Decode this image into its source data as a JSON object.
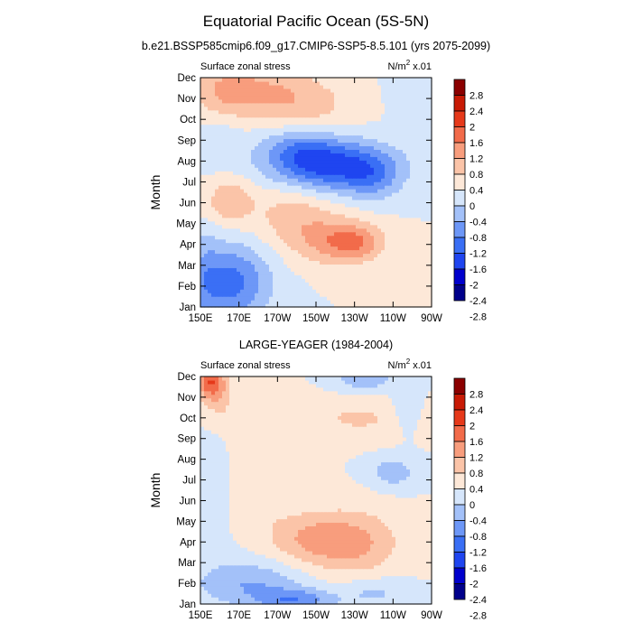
{
  "title": "Equatorial Pacific Ocean (5S-5N)",
  "units_base": "N/m",
  "units_exp": "2",
  "units_suffix": " x.01",
  "colors": [
    "#00008b",
    "#0000cd",
    "#1f45f0",
    "#3a6ff5",
    "#6d97f7",
    "#a3c1f9",
    "#d6e6fb",
    "#fde8d8",
    "#fbc4a8",
    "#f89d7d",
    "#f26b4a",
    "#e6391a",
    "#c81a05",
    "#8b0000"
  ],
  "chart_data": [
    {
      "type": "heatmap",
      "title": "b.e21.BSSP585cmip6.f09_g17.CMIP6-SSP5-8.5.101 (yrs 2075-2099)",
      "left_label": "Surface zonal stress",
      "ylabel": "Month",
      "x_ticks": [
        "150E",
        "170E",
        "170W",
        "150W",
        "130W",
        "110W",
        "90W"
      ],
      "y_ticks": [
        "Jan",
        "Feb",
        "Mar",
        "Apr",
        "May",
        "Jun",
        "Jul",
        "Aug",
        "Sep",
        "Oct",
        "Nov",
        "Dec"
      ],
      "levels": [
        "-2.8",
        "-2.4",
        "-2",
        "-1.6",
        "-1.2",
        "-0.8",
        "-0.4",
        "0",
        "0.4",
        "0.8",
        "1.2",
        "1.6",
        "2",
        "2.4",
        "2.8"
      ],
      "xlim": [
        150,
        270
      ],
      "ylim": [
        1,
        12
      ],
      "features": [
        {
          "lon": 166,
          "month": 2.2,
          "amp": -1.35,
          "sx": 14,
          "sy": 1.3
        },
        {
          "lon": 152,
          "month": 2.5,
          "amp": -0.4,
          "sx": 6,
          "sy": 1.8
        },
        {
          "lon": 220,
          "month": 4.2,
          "amp": 0.9,
          "sx": 14,
          "sy": 0.8
        },
        {
          "lon": 232,
          "month": 4.1,
          "amp": 0.7,
          "sx": 10,
          "sy": 0.6
        },
        {
          "lon": 198,
          "month": 5.4,
          "amp": 0.6,
          "sx": 14,
          "sy": 1.1
        },
        {
          "lon": 165,
          "month": 6.1,
          "amp": 0.75,
          "sx": 9,
          "sy": 0.8
        },
        {
          "lon": 218,
          "month": 7.8,
          "amp": -1.8,
          "sx": 22,
          "sy": 0.85
        },
        {
          "lon": 200,
          "month": 8.7,
          "amp": -0.7,
          "sx": 14,
          "sy": 0.7
        },
        {
          "lon": 240,
          "month": 7.2,
          "amp": -0.6,
          "sx": 10,
          "sy": 0.8
        },
        {
          "lon": 205,
          "month": 10.6,
          "amp": 0.5,
          "sx": 18,
          "sy": 0.9
        },
        {
          "lon": 180,
          "month": 11.5,
          "amp": 0.7,
          "sx": 20,
          "sy": 0.9
        },
        {
          "lon": 162,
          "month": 11.3,
          "amp": 0.5,
          "sx": 10,
          "sy": 1.0
        },
        {
          "lon": 160,
          "month": 9.0,
          "amp": -0.3,
          "sx": 8,
          "sy": 1.0
        },
        {
          "lon": 255,
          "month": 11.5,
          "amp": -0.25,
          "sx": 6,
          "sy": 1.0
        }
      ]
    },
    {
      "type": "heatmap",
      "title": "LARGE-YEAGER (1984-2004)",
      "left_label": "Surface zonal stress",
      "ylabel": "Month",
      "x_ticks": [
        "150E",
        "170E",
        "170W",
        "150W",
        "130W",
        "110W",
        "90W"
      ],
      "y_ticks": [
        "Jan",
        "Feb",
        "Mar",
        "Apr",
        "May",
        "Jun",
        "Jul",
        "Aug",
        "Sep",
        "Oct",
        "Nov",
        "Dec"
      ],
      "levels": [
        "-2.8",
        "-2.4",
        "-2",
        "-1.6",
        "-1.2",
        "-0.8",
        "-0.4",
        "0",
        "0.4",
        "0.8",
        "1.2",
        "1.6",
        "2",
        "2.4",
        "2.8"
      ],
      "xlim": [
        150,
        270
      ],
      "ylim": [
        1,
        12
      ],
      "features": [
        {
          "lon": 155,
          "month": 11.8,
          "amp": 1.4,
          "sx": 5,
          "sy": 0.6
        },
        {
          "lon": 160,
          "month": 11.0,
          "amp": 0.5,
          "sx": 6,
          "sy": 1.0
        },
        {
          "lon": 230,
          "month": 4.0,
          "amp": 0.9,
          "sx": 16,
          "sy": 1.1
        },
        {
          "lon": 205,
          "month": 4.2,
          "amp": 0.7,
          "sx": 14,
          "sy": 0.9
        },
        {
          "lon": 232,
          "month": 10.0,
          "amp": 0.45,
          "sx": 22,
          "sy": 0.7
        },
        {
          "lon": 183,
          "month": 7.5,
          "amp": 0.35,
          "sx": 9,
          "sy": 2.0
        },
        {
          "lon": 175,
          "month": 2.0,
          "amp": -0.8,
          "sx": 20,
          "sy": 0.8
        },
        {
          "lon": 200,
          "month": 1.2,
          "amp": -1.0,
          "sx": 14,
          "sy": 0.4
        },
        {
          "lon": 240,
          "month": 1.6,
          "amp": -0.5,
          "sx": 12,
          "sy": 0.5
        },
        {
          "lon": 250,
          "month": 7.4,
          "amp": -0.7,
          "sx": 8,
          "sy": 0.5
        },
        {
          "lon": 235,
          "month": 12.0,
          "amp": -0.8,
          "sx": 10,
          "sy": 0.5
        },
        {
          "lon": 257,
          "month": 10.5,
          "amp": -0.5,
          "sx": 5,
          "sy": 0.8
        },
        {
          "lon": 156,
          "month": 6.5,
          "amp": -0.3,
          "sx": 5,
          "sy": 2.0
        }
      ]
    }
  ]
}
